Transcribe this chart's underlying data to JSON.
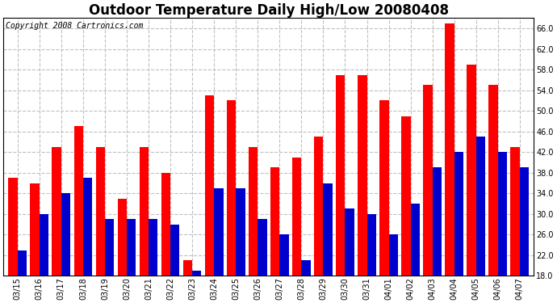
{
  "title": "Outdoor Temperature Daily High/Low 20080408",
  "copyright": "Copyright 2008 Cartronics.com",
  "categories": [
    "03/15",
    "03/16",
    "03/17",
    "03/18",
    "03/19",
    "03/20",
    "03/21",
    "03/22",
    "03/23",
    "03/24",
    "03/25",
    "03/26",
    "03/27",
    "03/28",
    "03/29",
    "03/30",
    "03/31",
    "04/01",
    "04/02",
    "04/03",
    "04/04",
    "04/05",
    "04/06",
    "04/07"
  ],
  "highs": [
    37,
    36,
    43,
    47,
    43,
    33,
    43,
    38,
    21,
    53,
    52,
    43,
    39,
    41,
    45,
    57,
    57,
    52,
    49,
    55,
    67,
    59,
    55,
    43
  ],
  "lows": [
    23,
    30,
    34,
    37,
    29,
    29,
    29,
    28,
    19,
    35,
    35,
    29,
    26,
    21,
    36,
    31,
    30,
    26,
    32,
    39,
    42,
    45,
    42,
    39
  ],
  "high_color": "#ff0000",
  "low_color": "#0000cc",
  "bg_color": "#ffffff",
  "plot_bg_color": "#ffffff",
  "grid_color": "#c0c0c0",
  "ylim_min": 18.0,
  "ylim_max": 68.0,
  "yticks": [
    18.0,
    22.0,
    26.0,
    30.0,
    34.0,
    38.0,
    42.0,
    46.0,
    50.0,
    54.0,
    58.0,
    62.0,
    66.0
  ],
  "bar_width": 0.42,
  "title_fontsize": 12,
  "tick_fontsize": 7,
  "copyright_fontsize": 7
}
